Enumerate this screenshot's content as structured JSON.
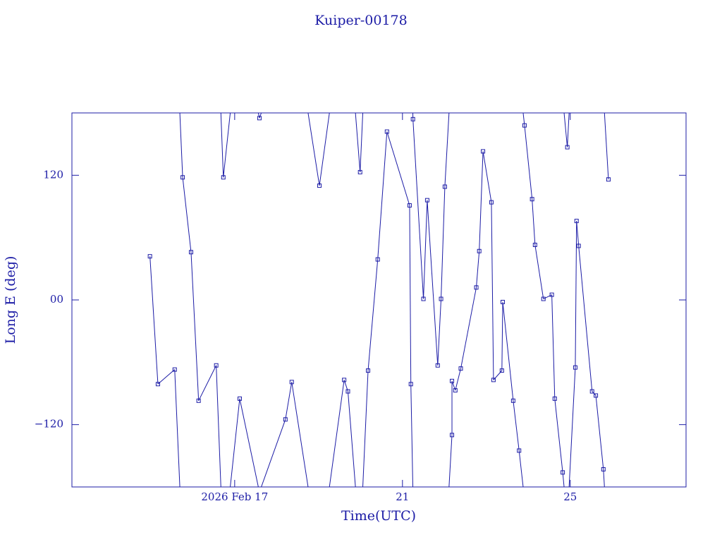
{
  "chart_data": {
    "type": "line",
    "title": "Kuiper-00178",
    "xlabel": "Time(UTC)",
    "ylabel": "Long E (deg)",
    "color": "#1c1ca6",
    "marker": "square",
    "wrap": true,
    "xlim": [
      13.12,
      27.76
    ],
    "ylim": [
      -180,
      180
    ],
    "xticks": [
      {
        "value": 17,
        "label": "2026 Feb 17"
      },
      21,
      25
    ],
    "yticks": [
      {
        "value": -120,
        "label": "−120"
      },
      {
        "value": 0,
        "label": "00"
      },
      120
    ],
    "series": [
      {
        "name": "Kuiper-00178",
        "x": [
          14.98,
          15.17,
          15.57,
          15.76,
          15.96,
          16.14,
          16.56,
          16.73,
          17.12,
          17.59,
          18.21,
          18.36,
          19.02,
          19.61,
          19.7,
          19.99,
          20.18,
          20.41,
          20.63,
          21.17,
          21.2,
          21.25,
          21.5,
          21.59,
          21.84,
          21.92,
          22.01,
          22.18,
          22.18,
          22.26,
          22.39,
          22.76,
          22.83,
          22.92,
          23.12,
          23.17,
          23.37,
          23.39,
          23.64,
          23.78,
          23.91,
          24.09,
          24.16,
          24.36,
          24.56,
          24.63,
          24.82,
          24.93,
          25.12,
          25.15,
          25.2,
          25.52,
          25.61,
          25.79,
          25.91
        ],
        "values": [
          42,
          -81,
          -67,
          118,
          46,
          -97,
          -63,
          118,
          -95,
          175,
          -115,
          -79,
          110,
          -77,
          -88,
          123,
          -68,
          39,
          162,
          91,
          -81,
          174,
          1,
          96,
          -63,
          1,
          109,
          -130,
          -78,
          -87,
          -66,
          12,
          47,
          143,
          94,
          -77,
          -68,
          -2,
          -97,
          -145,
          168,
          97,
          53,
          1,
          5,
          -95,
          -166,
          147,
          -65,
          76,
          52,
          -88,
          -92,
          -163,
          116
        ]
      }
    ]
  }
}
